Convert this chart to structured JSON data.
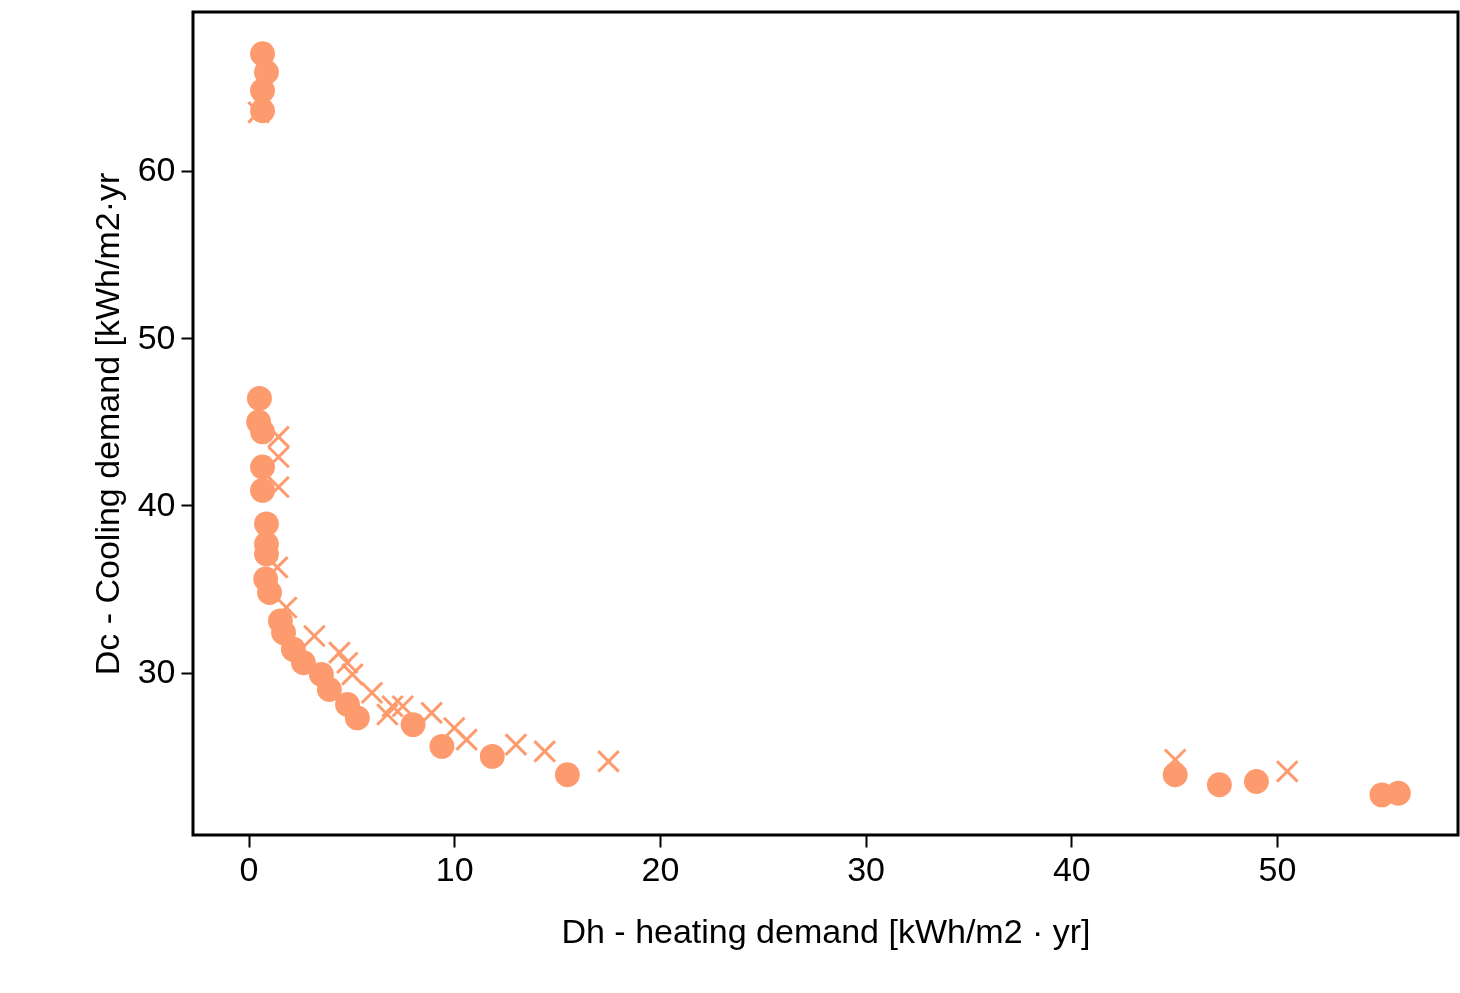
{
  "chart_data": {
    "type": "scatter",
    "xlabel": "Dh - heating demand [kWh/m2 · yr]",
    "ylabel": "Dc - Cooling demand [kWh/m2·yr",
    "xlim": [
      -2.7,
      58.8
    ],
    "ylim": [
      20.3,
      69.5
    ],
    "xticks": [
      0,
      10,
      20,
      30,
      40,
      50
    ],
    "yticks": [
      30,
      40,
      50,
      60
    ],
    "series": [
      {
        "marker": "circle",
        "color": "#fd9b6e",
        "x": [
          0.68,
          0.87,
          0.68,
          0.68,
          0.53,
          0.49,
          0.68,
          0.68,
          0.68,
          0.87,
          0.87,
          0.87,
          0.83,
          1.02,
          1.55,
          1.7,
          2.18,
          2.67,
          3.54,
          3.93,
          4.81,
          5.29,
          8.0,
          9.4,
          11.85,
          15.5,
          45.05,
          47.2,
          49.0,
          55.1,
          55.9
        ],
        "values": [
          67.0,
          65.9,
          64.8,
          63.6,
          46.4,
          45.0,
          44.4,
          42.3,
          40.9,
          38.9,
          37.7,
          37.1,
          35.6,
          34.8,
          33.1,
          32.4,
          31.4,
          30.6,
          29.9,
          29.0,
          28.1,
          27.3,
          26.9,
          25.6,
          25.0,
          23.9,
          23.9,
          23.3,
          23.5,
          22.7,
          22.8
        ]
      },
      {
        "marker": "cross",
        "color": "#fd9b6e",
        "x": [
          0.49,
          1.46,
          1.46,
          1.46,
          1.4,
          1.84,
          3.2,
          4.42,
          4.8,
          5.05,
          6.0,
          6.75,
          7.0,
          7.5,
          8.9,
          10.0,
          10.6,
          13.0,
          14.4,
          17.5,
          45.05,
          50.5
        ],
        "values": [
          63.5,
          44.1,
          42.9,
          41.1,
          36.3,
          33.9,
          32.2,
          31.2,
          30.6,
          29.9,
          28.8,
          27.5,
          28.0,
          28.0,
          27.6,
          26.7,
          26.0,
          25.7,
          25.3,
          24.7,
          24.8,
          24.1
        ]
      }
    ]
  }
}
